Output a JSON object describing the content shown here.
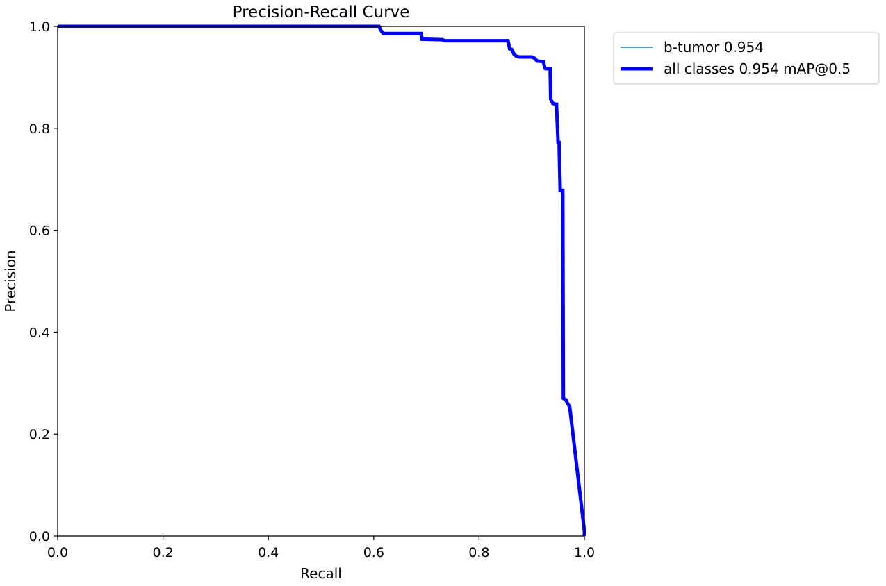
{
  "chart_data": {
    "type": "line",
    "title": "Precision-Recall Curve",
    "xlabel": "Recall",
    "ylabel": "Precision",
    "xlim": [
      0,
      1
    ],
    "ylim": [
      0,
      1
    ],
    "xticks": [
      "0.0",
      "0.2",
      "0.4",
      "0.6",
      "0.8",
      "1.0"
    ],
    "yticks": [
      "0.0",
      "0.2",
      "0.4",
      "0.6",
      "0.8",
      "1.0"
    ],
    "grid": false,
    "legend_position": "outside-top-right",
    "series": [
      {
        "name": "b-tumor 0.954",
        "color": "#1f77b4",
        "style": "thin",
        "x": [
          0.0,
          0.61,
          0.613,
          0.618,
          0.69,
          0.692,
          0.73,
          0.735,
          0.855,
          0.858,
          0.862,
          0.866,
          0.87,
          0.876,
          0.9,
          0.906,
          0.91,
          0.92,
          0.922,
          0.925,
          0.926,
          0.935,
          0.936,
          0.938,
          0.94,
          0.946,
          0.947,
          0.95,
          0.952,
          0.954,
          0.956,
          0.959,
          0.96,
          0.965,
          0.968,
          0.972,
          1.0,
          1.0
        ],
        "y": [
          1.0,
          1.0,
          0.993,
          0.986,
          0.986,
          0.975,
          0.974,
          0.972,
          0.972,
          0.956,
          0.955,
          0.946,
          0.942,
          0.94,
          0.94,
          0.937,
          0.932,
          0.931,
          0.931,
          0.918,
          0.917,
          0.917,
          0.857,
          0.853,
          0.849,
          0.847,
          0.847,
          0.772,
          0.772,
          0.678,
          0.678,
          0.678,
          0.27,
          0.267,
          0.26,
          0.254,
          0.01,
          0.0
        ]
      },
      {
        "name": "all classes 0.954 mAP@0.5",
        "color": "#0000ff",
        "style": "thick",
        "x": [
          0.0,
          0.61,
          0.613,
          0.618,
          0.69,
          0.692,
          0.73,
          0.735,
          0.855,
          0.858,
          0.862,
          0.866,
          0.87,
          0.876,
          0.9,
          0.906,
          0.91,
          0.92,
          0.922,
          0.925,
          0.926,
          0.935,
          0.936,
          0.938,
          0.94,
          0.946,
          0.947,
          0.95,
          0.952,
          0.954,
          0.956,
          0.959,
          0.96,
          0.965,
          0.968,
          0.972,
          1.0,
          1.0
        ],
        "y": [
          1.0,
          1.0,
          0.993,
          0.986,
          0.986,
          0.975,
          0.974,
          0.972,
          0.972,
          0.956,
          0.955,
          0.946,
          0.942,
          0.94,
          0.94,
          0.937,
          0.932,
          0.931,
          0.931,
          0.918,
          0.917,
          0.917,
          0.857,
          0.853,
          0.849,
          0.847,
          0.847,
          0.772,
          0.772,
          0.678,
          0.678,
          0.678,
          0.27,
          0.267,
          0.26,
          0.254,
          0.01,
          0.0
        ]
      }
    ]
  }
}
